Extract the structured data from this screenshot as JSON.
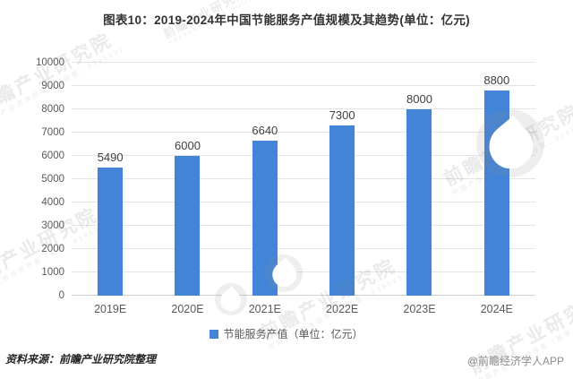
{
  "title": "图表10：2019-2024年中国节能服务产值规模及其趋势(单位：亿元)",
  "chart_data": {
    "type": "bar",
    "categories": [
      "2019E",
      "2020E",
      "2021E",
      "2022E",
      "2023E",
      "2024E"
    ],
    "values": [
      5490,
      6000,
      6640,
      7300,
      8000,
      8800
    ],
    "title": "图表10：2019-2024年中国节能服务产值规模及其趋势(单位：亿元)",
    "xlabel": "",
    "ylabel": "",
    "ylim": [
      0,
      10000
    ],
    "ytick_step": 1000,
    "grid": true,
    "legend": [
      "节能服务产值（单位：亿元）"
    ],
    "legend_position": "bottom",
    "bar_color": "#4184d8",
    "data_labels_shown": true
  },
  "legend": {
    "label": "节能服务产值（单位：亿元）",
    "swatch_color": "#4184d8"
  },
  "footer": {
    "source": "资料来源：前瞻产业研究院整理",
    "attribution": "@前瞻经济学人APP"
  },
  "watermark": {
    "text": "前瞻产业研究院",
    "subtext": "中国产业咨询领导者（股票：839599）",
    "logo_icon": "qianzhan-swirl-logo"
  },
  "colors": {
    "bar": "#4184d8",
    "gridline": "#e4e4e4",
    "axis_line": "#d2d2d2",
    "tick_label": "#595959",
    "value_label": "#3f3f3f",
    "title": "#333333",
    "source_text": "#262626",
    "attribution_text": "#8c8c8c"
  }
}
